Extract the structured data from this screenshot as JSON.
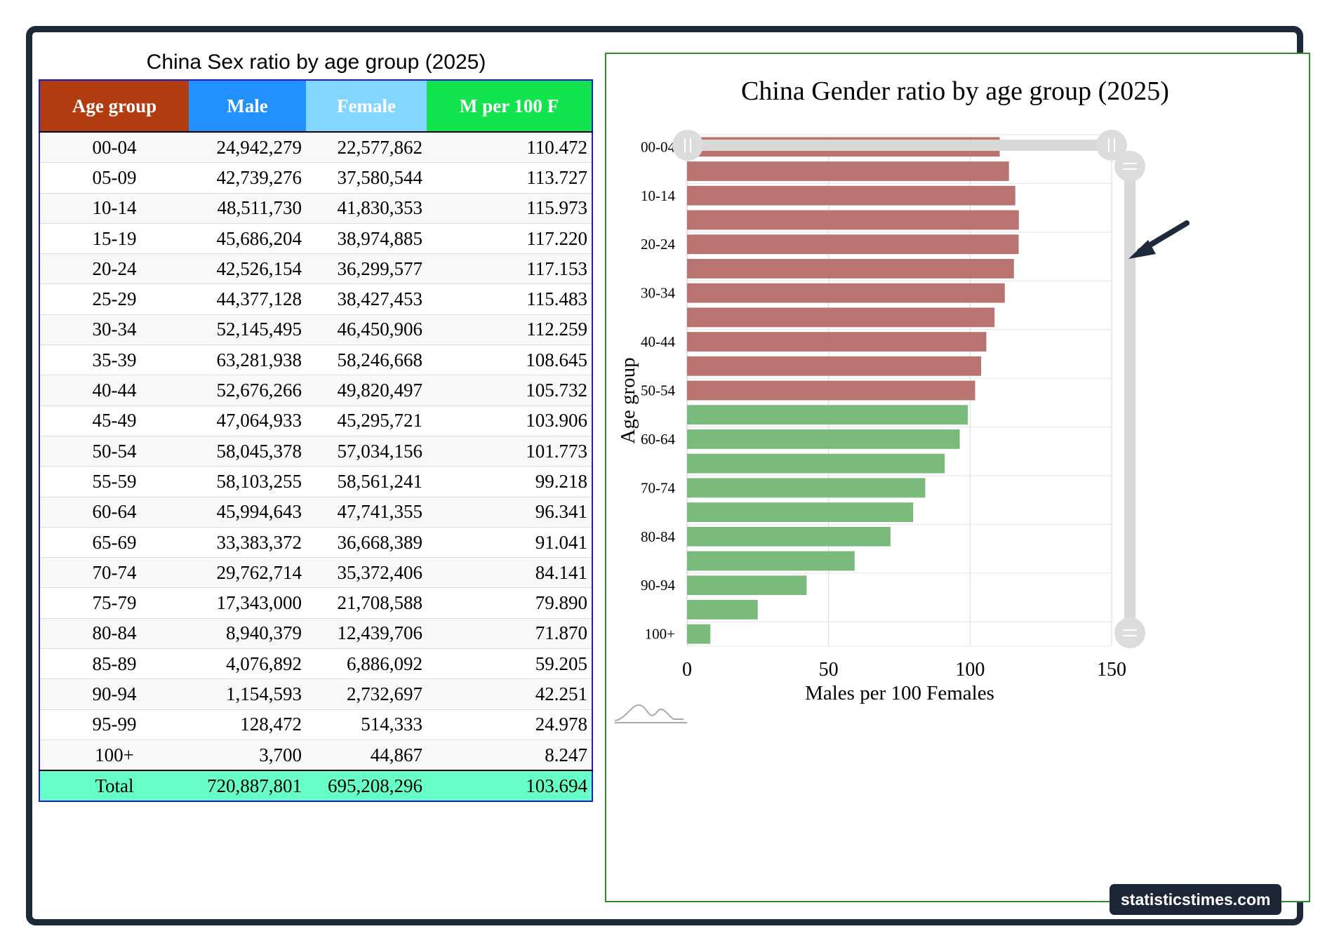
{
  "table": {
    "title": "China Sex ratio by age group (2025)",
    "headers": [
      "Age group",
      "Male",
      "Female",
      "M per 100 F"
    ],
    "header_colors": [
      "#b03c10",
      "#2290ff",
      "#82d6ff",
      "#12e44e"
    ],
    "rows": [
      [
        "00-04",
        "24,942,279",
        "22,577,862",
        "110.472"
      ],
      [
        "05-09",
        "42,739,276",
        "37,580,544",
        "113.727"
      ],
      [
        "10-14",
        "48,511,730",
        "41,830,353",
        "115.973"
      ],
      [
        "15-19",
        "45,686,204",
        "38,974,885",
        "117.220"
      ],
      [
        "20-24",
        "42,526,154",
        "36,299,577",
        "117.153"
      ],
      [
        "25-29",
        "44,377,128",
        "38,427,453",
        "115.483"
      ],
      [
        "30-34",
        "52,145,495",
        "46,450,906",
        "112.259"
      ],
      [
        "35-39",
        "63,281,938",
        "58,246,668",
        "108.645"
      ],
      [
        "40-44",
        "52,676,266",
        "49,820,497",
        "105.732"
      ],
      [
        "45-49",
        "47,064,933",
        "45,295,721",
        "103.906"
      ],
      [
        "50-54",
        "58,045,378",
        "57,034,156",
        "101.773"
      ],
      [
        "55-59",
        "58,103,255",
        "58,561,241",
        "99.218"
      ],
      [
        "60-64",
        "45,994,643",
        "47,741,355",
        "96.341"
      ],
      [
        "65-69",
        "33,383,372",
        "36,668,389",
        "91.041"
      ],
      [
        "70-74",
        "29,762,714",
        "35,372,406",
        "84.141"
      ],
      [
        "75-79",
        "17,343,000",
        "21,708,588",
        "79.890"
      ],
      [
        "80-84",
        "8,940,379",
        "12,439,706",
        "71.870"
      ],
      [
        "85-89",
        "4,076,892",
        "6,886,092",
        "59.205"
      ],
      [
        "90-94",
        "1,154,593",
        "2,732,697",
        "42.251"
      ],
      [
        "95-99",
        "128,472",
        "514,333",
        "24.978"
      ],
      [
        "100+",
        "3,700",
        "44,867",
        "8.247"
      ]
    ],
    "total": [
      "Total",
      "720,887,801",
      "695,208,296",
      "103.694"
    ],
    "total_color": "#66ffc7"
  },
  "chart_data": {
    "type": "bar",
    "orientation": "horizontal",
    "title": "China Gender ratio by age group (2025)",
    "xlabel": "Males per 100 Females",
    "ylabel": "Age group",
    "categories": [
      "00-04",
      "05-09",
      "10-14",
      "15-19",
      "20-24",
      "25-29",
      "30-34",
      "35-39",
      "40-44",
      "45-49",
      "50-54",
      "55-59",
      "60-64",
      "65-69",
      "70-74",
      "75-79",
      "80-84",
      "85-89",
      "90-94",
      "95-99",
      "100+"
    ],
    "values": [
      110.472,
      113.727,
      115.973,
      117.22,
      117.153,
      115.483,
      112.259,
      108.645,
      105.732,
      103.906,
      101.773,
      99.218,
      96.341,
      91.041,
      84.141,
      79.89,
      71.87,
      59.205,
      42.251,
      24.978,
      8.247
    ],
    "shown_category_labels": [
      "00-04",
      "10-14",
      "20-24",
      "30-34",
      "40-44",
      "50-54",
      "60-64",
      "70-74",
      "80-84",
      "90-94",
      "100+"
    ],
    "xlim": [
      0,
      150
    ],
    "xticks": [
      0,
      50,
      100,
      150
    ],
    "grid": true,
    "colors": {
      "above_100": "#b97370",
      "below_100": "#7aba7a"
    },
    "annotation": "arrow pointing to 15-19 bar"
  },
  "brand": "statisticstimes.com"
}
